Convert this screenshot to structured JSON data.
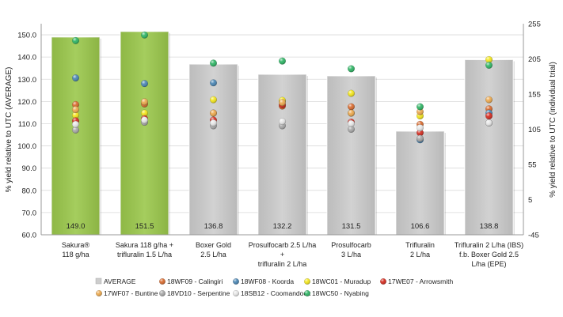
{
  "chart_data": {
    "type": "bar",
    "title": "",
    "ylabel_left": "% yield relative to UTC (AVERAGE)",
    "ylabel_right": "% yield relative to UTC (individual trial)",
    "ylim_left": [
      60,
      155
    ],
    "yticks_left": [
      "60.0",
      "70.0",
      "80.0",
      "90.0",
      "100.0",
      "110.0",
      "120.0",
      "130.0",
      "140.0",
      "150.0"
    ],
    "ylim_right": [
      -45,
      255
    ],
    "yticks_right": [
      "-45",
      "5",
      "55",
      "105",
      "155",
      "205",
      "255"
    ],
    "grid": true,
    "legend_position": "bottom",
    "categories": [
      {
        "line1": "Sakura®",
        "line2": "118 g/ha",
        "line3": ""
      },
      {
        "line1": "Sakura 118 g/ha +",
        "line2": "trifluralin 1.5 L/ha",
        "line3": ""
      },
      {
        "line1": "Boxer Gold",
        "line2": "2.5 L/ha",
        "line3": ""
      },
      {
        "line1": "Prosulfocarb 2.5 L/ha",
        "line2": "+",
        "line3": "trifluralin 2 L/ha"
      },
      {
        "line1": "Prosulfocarb",
        "line2": "3 L/ha",
        "line3": ""
      },
      {
        "line1": "Trifluralin",
        "line2": "2 L/ha",
        "line3": ""
      },
      {
        "line1": "Trifluralin 2 L/ha (IBS)",
        "line2": "f.b. Boxer Gold 2.5",
        "line3": "L/ha (EPE)"
      }
    ],
    "bar_series": {
      "name": "AVERAGE",
      "values": [
        149.0,
        151.5,
        136.8,
        132.2,
        131.5,
        106.6,
        138.8
      ],
      "labels": [
        "149.0",
        "151.5",
        "136.8",
        "132.2",
        "131.5",
        "106.6",
        "138.8"
      ],
      "colors": [
        "#9bc84c",
        "#9bc84c",
        "#cdcdcd",
        "#cdcdcd",
        "#cdcdcd",
        "#cdcdcd",
        "#cdcdcd"
      ]
    },
    "point_series": [
      {
        "name": "18WF09 - Calingiri",
        "color": "#d86a2e",
        "values": [
          140,
          141,
          128,
          138,
          137,
          112,
          134
        ]
      },
      {
        "name": "18WF08 - Koorda",
        "color": "#4a86b4",
        "values": [
          178,
          170,
          171,
          145,
          128,
          90,
          128
        ]
      },
      {
        "name": "18WC01 - Muradup",
        "color": "#f3e61c",
        "values": [
          125,
          128,
          147,
          146,
          156,
          124,
          204
        ]
      },
      {
        "name": "17WE07 - Arrowsmith",
        "color": "#d42b1f",
        "values": [
          117,
          120,
          118,
          140,
          115,
          100,
          124
        ]
      },
      {
        "name": "17WF07 - Buntine",
        "color": "#eca94e",
        "values": [
          133,
          144,
          128,
          143,
          128,
          130,
          147
        ]
      },
      {
        "name": "18VD10 - Serpentine",
        "color": "#a8a8a8",
        "values": [
          104,
          115,
          110,
          110,
          105,
          92,
          114
        ]
      },
      {
        "name": "18SB12 - Coomandook",
        "color": "#e6e6e6",
        "values": [
          112,
          118,
          114,
          116,
          113,
          107,
          114
        ]
      },
      {
        "name": "18WC50 - Nyabing",
        "color": "#2fb565",
        "values": [
          231,
          239,
          199,
          202,
          191,
          137,
          196
        ]
      }
    ]
  }
}
